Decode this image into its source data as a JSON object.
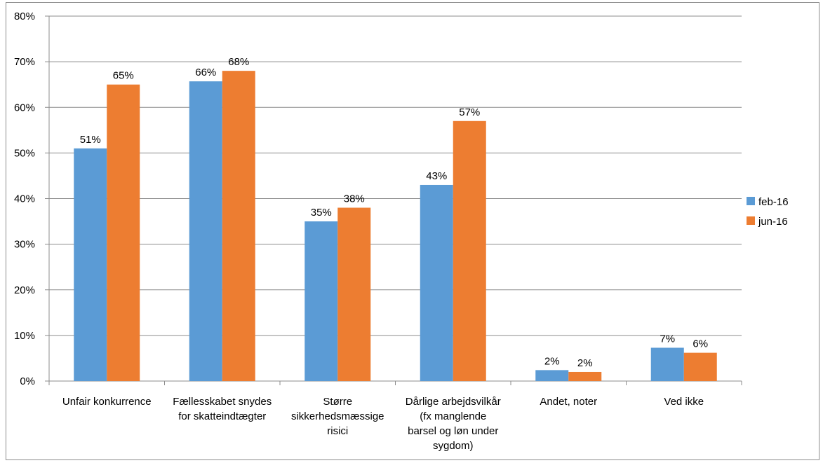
{
  "chart_data": {
    "type": "bar",
    "categories": [
      [
        "Unfair konkurrence"
      ],
      [
        "Fællesskabet snydes",
        "for skatteindtægter"
      ],
      [
        "Større",
        "sikkerhedsmæssige",
        "risici"
      ],
      [
        "Dårlige arbejdsvilkår",
        "(fx manglende",
        "barsel og løn under",
        "sygdom)"
      ],
      [
        "Andet, noter"
      ],
      [
        "Ved ikke"
      ]
    ],
    "series": [
      {
        "name": "feb-16",
        "color": "#5B9BD5",
        "values": [
          51,
          65.7,
          35,
          43,
          2.4,
          7.3
        ],
        "labels": [
          "51%",
          "66%",
          "35%",
          "43%",
          "2%",
          "7%"
        ]
      },
      {
        "name": "jun-16",
        "color": "#ED7D31",
        "values": [
          65,
          68,
          38,
          57,
          2,
          6.2
        ],
        "labels": [
          "65%",
          "68%",
          "38%",
          "57%",
          "2%",
          "6%"
        ]
      }
    ],
    "ylim": [
      0,
      80
    ],
    "yticks": [
      "0%",
      "10%",
      "20%",
      "30%",
      "40%",
      "50%",
      "60%",
      "70%",
      "80%"
    ],
    "grid": true,
    "legend_position": "right"
  }
}
